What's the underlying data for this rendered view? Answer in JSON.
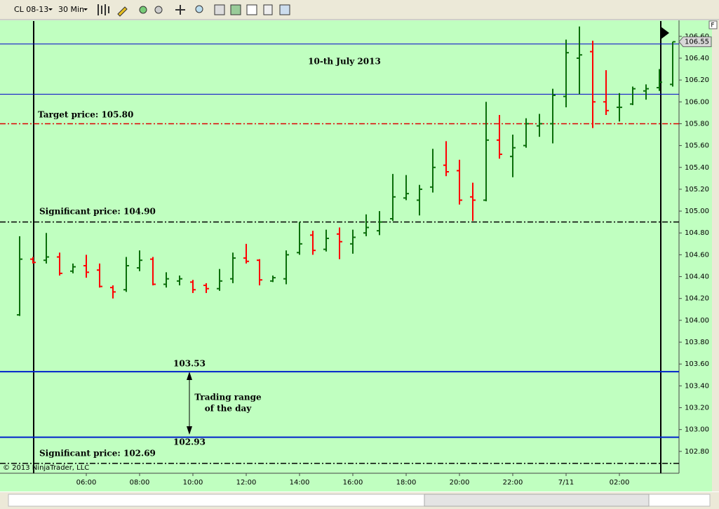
{
  "toolbar": {
    "instrument": "CL 08-13",
    "interval": "30 Min"
  },
  "panel_badge": "F",
  "copyright": "© 2013 NinjaTrader, LLC",
  "chart_data": {
    "type": "ohlc",
    "title": "10-th July 2013",
    "categories": [
      null,
      null,
      null,
      null,
      null,
      "06:00",
      null,
      null,
      null,
      "08:00",
      null,
      null,
      null,
      "10:00",
      null,
      null,
      null,
      "12:00",
      null,
      null,
      null,
      "14:00",
      null,
      null,
      null,
      "16:00",
      null,
      null,
      null,
      "18:00",
      null,
      null,
      null,
      "20:00",
      null,
      null,
      null,
      "22:00",
      null,
      null,
      null,
      "7/11",
      null,
      null,
      null,
      "02:00",
      null,
      null,
      null,
      null
    ],
    "open": [
      104.05,
      104.56,
      104.55,
      104.58,
      104.45,
      104.5,
      104.46,
      104.3,
      104.28,
      104.48,
      104.56,
      104.33,
      104.36,
      104.35,
      104.32,
      104.29,
      104.38,
      104.57,
      104.55,
      104.36,
      104.38,
      104.62,
      104.78,
      104.65,
      104.79,
      104.7,
      104.8,
      104.82,
      104.93,
      105.12,
      105.1,
      105.22,
      105.42,
      105.37,
      105.13,
      105.1,
      105.65,
      105.5,
      105.6,
      105.78,
      105.8,
      106.05,
      106.4,
      106.46,
      106.0,
      105.95,
      105.98,
      106.1,
      106.13,
      106.16
    ],
    "high": [
      104.77,
      104.58,
      104.8,
      104.62,
      104.52,
      104.6,
      104.52,
      104.32,
      104.58,
      104.64,
      104.58,
      104.44,
      104.41,
      104.37,
      104.34,
      104.47,
      104.62,
      104.7,
      104.56,
      104.41,
      104.64,
      104.9,
      104.82,
      104.83,
      104.85,
      104.83,
      104.97,
      105.0,
      105.34,
      105.33,
      105.24,
      105.57,
      105.64,
      105.47,
      105.26,
      106.0,
      105.88,
      105.7,
      105.85,
      105.89,
      106.12,
      106.57,
      106.69,
      106.56,
      106.29,
      106.08,
      106.14,
      106.16,
      106.3,
      106.55
    ],
    "low": [
      104.04,
      104.52,
      104.52,
      104.41,
      104.43,
      104.39,
      104.3,
      104.2,
      104.26,
      104.45,
      104.32,
      104.3,
      104.32,
      104.25,
      104.25,
      104.27,
      104.34,
      104.52,
      104.32,
      104.35,
      104.33,
      104.6,
      104.6,
      104.63,
      104.56,
      104.61,
      104.77,
      104.78,
      104.91,
      105.1,
      104.96,
      105.17,
      105.32,
      105.06,
      104.91,
      105.09,
      105.48,
      105.31,
      105.58,
      105.68,
      105.62,
      105.95,
      106.07,
      105.76,
      105.88,
      105.82,
      105.97,
      106.02,
      106.1,
      106.14
    ],
    "close": [
      104.56,
      104.53,
      104.58,
      104.43,
      104.49,
      104.44,
      104.31,
      104.26,
      104.5,
      104.55,
      104.33,
      104.38,
      104.38,
      104.28,
      104.29,
      104.36,
      104.57,
      104.54,
      104.37,
      104.39,
      104.6,
      104.7,
      104.64,
      104.75,
      104.72,
      104.76,
      104.85,
      104.9,
      105.13,
      105.16,
      105.2,
      105.4,
      105.36,
      105.1,
      105.1,
      105.65,
      105.52,
      105.58,
      105.8,
      105.8,
      106.06,
      106.45,
      106.43,
      106.0,
      105.92,
      105.95,
      106.12,
      106.12,
      106.18,
      106.55
    ],
    "up_color": "#0a6e0a",
    "down_color": "#ff0000",
    "last_price": 106.55,
    "ylim": [
      102.6,
      106.74
    ],
    "yticks": [
      {
        "value": 102.8,
        "label": "102.80"
      },
      {
        "value": 103.0,
        "label": "103.00"
      },
      {
        "value": 103.2,
        "label": "103.20"
      },
      {
        "value": 103.4,
        "label": "103.40"
      },
      {
        "value": 103.6,
        "label": "103.60"
      },
      {
        "value": 103.8,
        "label": "103.80"
      },
      {
        "value": 104.0,
        "label": "104.00"
      },
      {
        "value": 104.2,
        "label": "104.20"
      },
      {
        "value": 104.4,
        "label": "104.40"
      },
      {
        "value": 104.6,
        "label": "104.60"
      },
      {
        "value": 104.8,
        "label": "104.80"
      },
      {
        "value": 105.0,
        "label": "105.00"
      },
      {
        "value": 105.2,
        "label": "105.20"
      },
      {
        "value": 105.4,
        "label": "105.40"
      },
      {
        "value": 105.6,
        "label": "105.60"
      },
      {
        "value": 105.8,
        "label": "105.80"
      },
      {
        "value": 106.0,
        "label": "106.00"
      },
      {
        "value": 106.2,
        "label": "106.20"
      },
      {
        "value": 106.4,
        "label": "106.40"
      },
      {
        "value": 106.6,
        "label": "106.60"
      }
    ],
    "hlines": [
      {
        "value": 106.53,
        "color": "#0000cc",
        "style": "solid",
        "width": 1
      },
      {
        "value": 106.07,
        "color": "#0000cc",
        "style": "solid",
        "width": 1
      },
      {
        "value": 105.8,
        "color": "#dd0000",
        "style": "dashdot",
        "width": 1.5
      },
      {
        "value": 104.9,
        "color": "#000000",
        "style": "dashdot",
        "width": 1.5
      },
      {
        "value": 103.53,
        "color": "#0022cc",
        "style": "solid",
        "width": 2
      },
      {
        "value": 102.93,
        "color": "#0022cc",
        "style": "solid",
        "width": 2
      },
      {
        "value": 102.69,
        "color": "#000000",
        "style": "dashdot",
        "width": 1.5
      }
    ],
    "annotations": [
      "Target price: 105.80",
      "Significant price: 104.90",
      "103.53",
      "Trading range",
      "of the day",
      "102.93",
      "Significant price: 102.69"
    ]
  }
}
